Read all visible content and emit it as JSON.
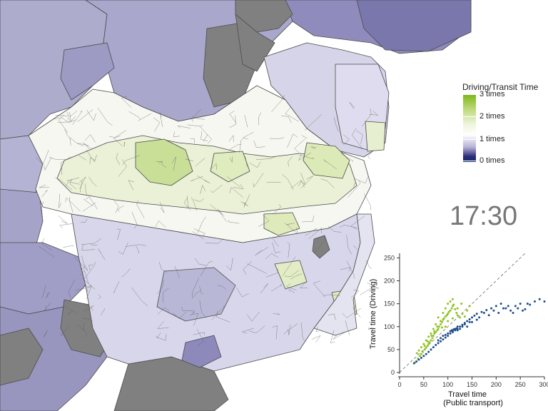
{
  "legend": {
    "title": "Driving/Transit Time",
    "labels": [
      "3 times",
      "2 times",
      "1 times",
      "0 times"
    ],
    "colors": {
      "high": "#7cb518",
      "mid": "#ffffff",
      "low": "#0b2f6b",
      "missing": "#808080"
    }
  },
  "clock": {
    "time": "17:30"
  },
  "chart_data": {
    "type": "scatter",
    "xlabel": "Travel time",
    "xlabel_sub": "(Public transport)",
    "ylabel": "Travel time (Driving)",
    "xlim": [
      0,
      300
    ],
    "ylim": [
      0,
      260
    ],
    "xticks": [
      "0",
      "50",
      "100",
      "150",
      "200",
      "250",
      "300"
    ],
    "yticks": [
      "0",
      "50",
      "100",
      "150",
      "200",
      "250"
    ],
    "reference_line": "y = x (dashed)",
    "series": [
      {
        "color": "#8fc31f",
        "points": [
          [
            32,
            22
          ],
          [
            38,
            30
          ],
          [
            42,
            36
          ],
          [
            45,
            40
          ],
          [
            48,
            45
          ],
          [
            52,
            50
          ],
          [
            55,
            54
          ],
          [
            58,
            58
          ],
          [
            60,
            62
          ],
          [
            62,
            66
          ],
          [
            65,
            70
          ],
          [
            68,
            75
          ],
          [
            70,
            80
          ],
          [
            72,
            85
          ],
          [
            75,
            88
          ],
          [
            78,
            92
          ],
          [
            80,
            95
          ],
          [
            82,
            100
          ],
          [
            85,
            105
          ],
          [
            88,
            110
          ],
          [
            90,
            115
          ],
          [
            92,
            118
          ],
          [
            95,
            122
          ],
          [
            98,
            125
          ],
          [
            100,
            128
          ],
          [
            102,
            132
          ],
          [
            105,
            135
          ],
          [
            108,
            140
          ],
          [
            110,
            145
          ],
          [
            112,
            148
          ],
          [
            115,
            138
          ],
          [
            118,
            130
          ],
          [
            120,
            125
          ],
          [
            125,
            120
          ],
          [
            130,
            128
          ],
          [
            135,
            122
          ],
          [
            140,
            135
          ],
          [
            145,
            145
          ],
          [
            75,
            105
          ],
          [
            80,
            120
          ],
          [
            85,
            112
          ],
          [
            90,
            130
          ],
          [
            95,
            140
          ],
          [
            100,
            150
          ],
          [
            105,
            155
          ],
          [
            110,
            160
          ],
          [
            70,
            95
          ],
          [
            65,
            85
          ],
          [
            60,
            78
          ],
          [
            55,
            70
          ],
          [
            50,
            62
          ],
          [
            45,
            55
          ],
          [
            40,
            48
          ],
          [
            36,
            42
          ],
          [
            100,
            112
          ],
          [
            110,
            118
          ],
          [
            120,
            140
          ],
          [
            128,
            150
          ],
          [
            95,
            100
          ],
          [
            88,
            98
          ],
          [
            78,
            100
          ],
          [
            72,
            90
          ],
          [
            66,
            80
          ],
          [
            58,
            68
          ],
          [
            52,
            58
          ]
        ]
      },
      {
        "color": "#1f4e8c",
        "points": [
          [
            30,
            20
          ],
          [
            35,
            24
          ],
          [
            40,
            28
          ],
          [
            45,
            32
          ],
          [
            50,
            36
          ],
          [
            55,
            40
          ],
          [
            60,
            45
          ],
          [
            65,
            50
          ],
          [
            70,
            55
          ],
          [
            75,
            60
          ],
          [
            80,
            64
          ],
          [
            85,
            68
          ],
          [
            90,
            72
          ],
          [
            95,
            76
          ],
          [
            100,
            80
          ],
          [
            105,
            85
          ],
          [
            110,
            88
          ],
          [
            115,
            92
          ],
          [
            120,
            95
          ],
          [
            125,
            100
          ],
          [
            130,
            104
          ],
          [
            135,
            108
          ],
          [
            140,
            112
          ],
          [
            145,
            116
          ],
          [
            150,
            120
          ],
          [
            155,
            124
          ],
          [
            160,
            128
          ],
          [
            170,
            132
          ],
          [
            180,
            136
          ],
          [
            190,
            140
          ],
          [
            200,
            145
          ],
          [
            210,
            150
          ],
          [
            220,
            140
          ],
          [
            230,
            135
          ],
          [
            240,
            145
          ],
          [
            250,
            150
          ],
          [
            260,
            138
          ],
          [
            270,
            148
          ],
          [
            280,
            155
          ],
          [
            290,
            160
          ],
          [
            300,
            155
          ],
          [
            110,
            90
          ],
          [
            115,
            95
          ],
          [
            120,
            100
          ],
          [
            125,
            95
          ],
          [
            130,
            100
          ],
          [
            135,
            105
          ],
          [
            140,
            100
          ],
          [
            145,
            110
          ],
          [
            100,
            85
          ],
          [
            105,
            90
          ],
          [
            95,
            82
          ],
          [
            90,
            80
          ],
          [
            85,
            75
          ],
          [
            80,
            70
          ],
          [
            175,
            130
          ],
          [
            185,
            125
          ],
          [
            195,
            135
          ],
          [
            205,
            130
          ],
          [
            215,
            140
          ],
          [
            225,
            145
          ],
          [
            235,
            130
          ],
          [
            245,
            140
          ],
          [
            255,
            135
          ],
          [
            265,
            150
          ],
          [
            150,
            110
          ],
          [
            160,
            115
          ],
          [
            165,
            120
          ],
          [
            120,
            92
          ],
          [
            118,
            96
          ],
          [
            112,
            94
          ],
          [
            108,
            92
          ]
        ]
      }
    ]
  }
}
